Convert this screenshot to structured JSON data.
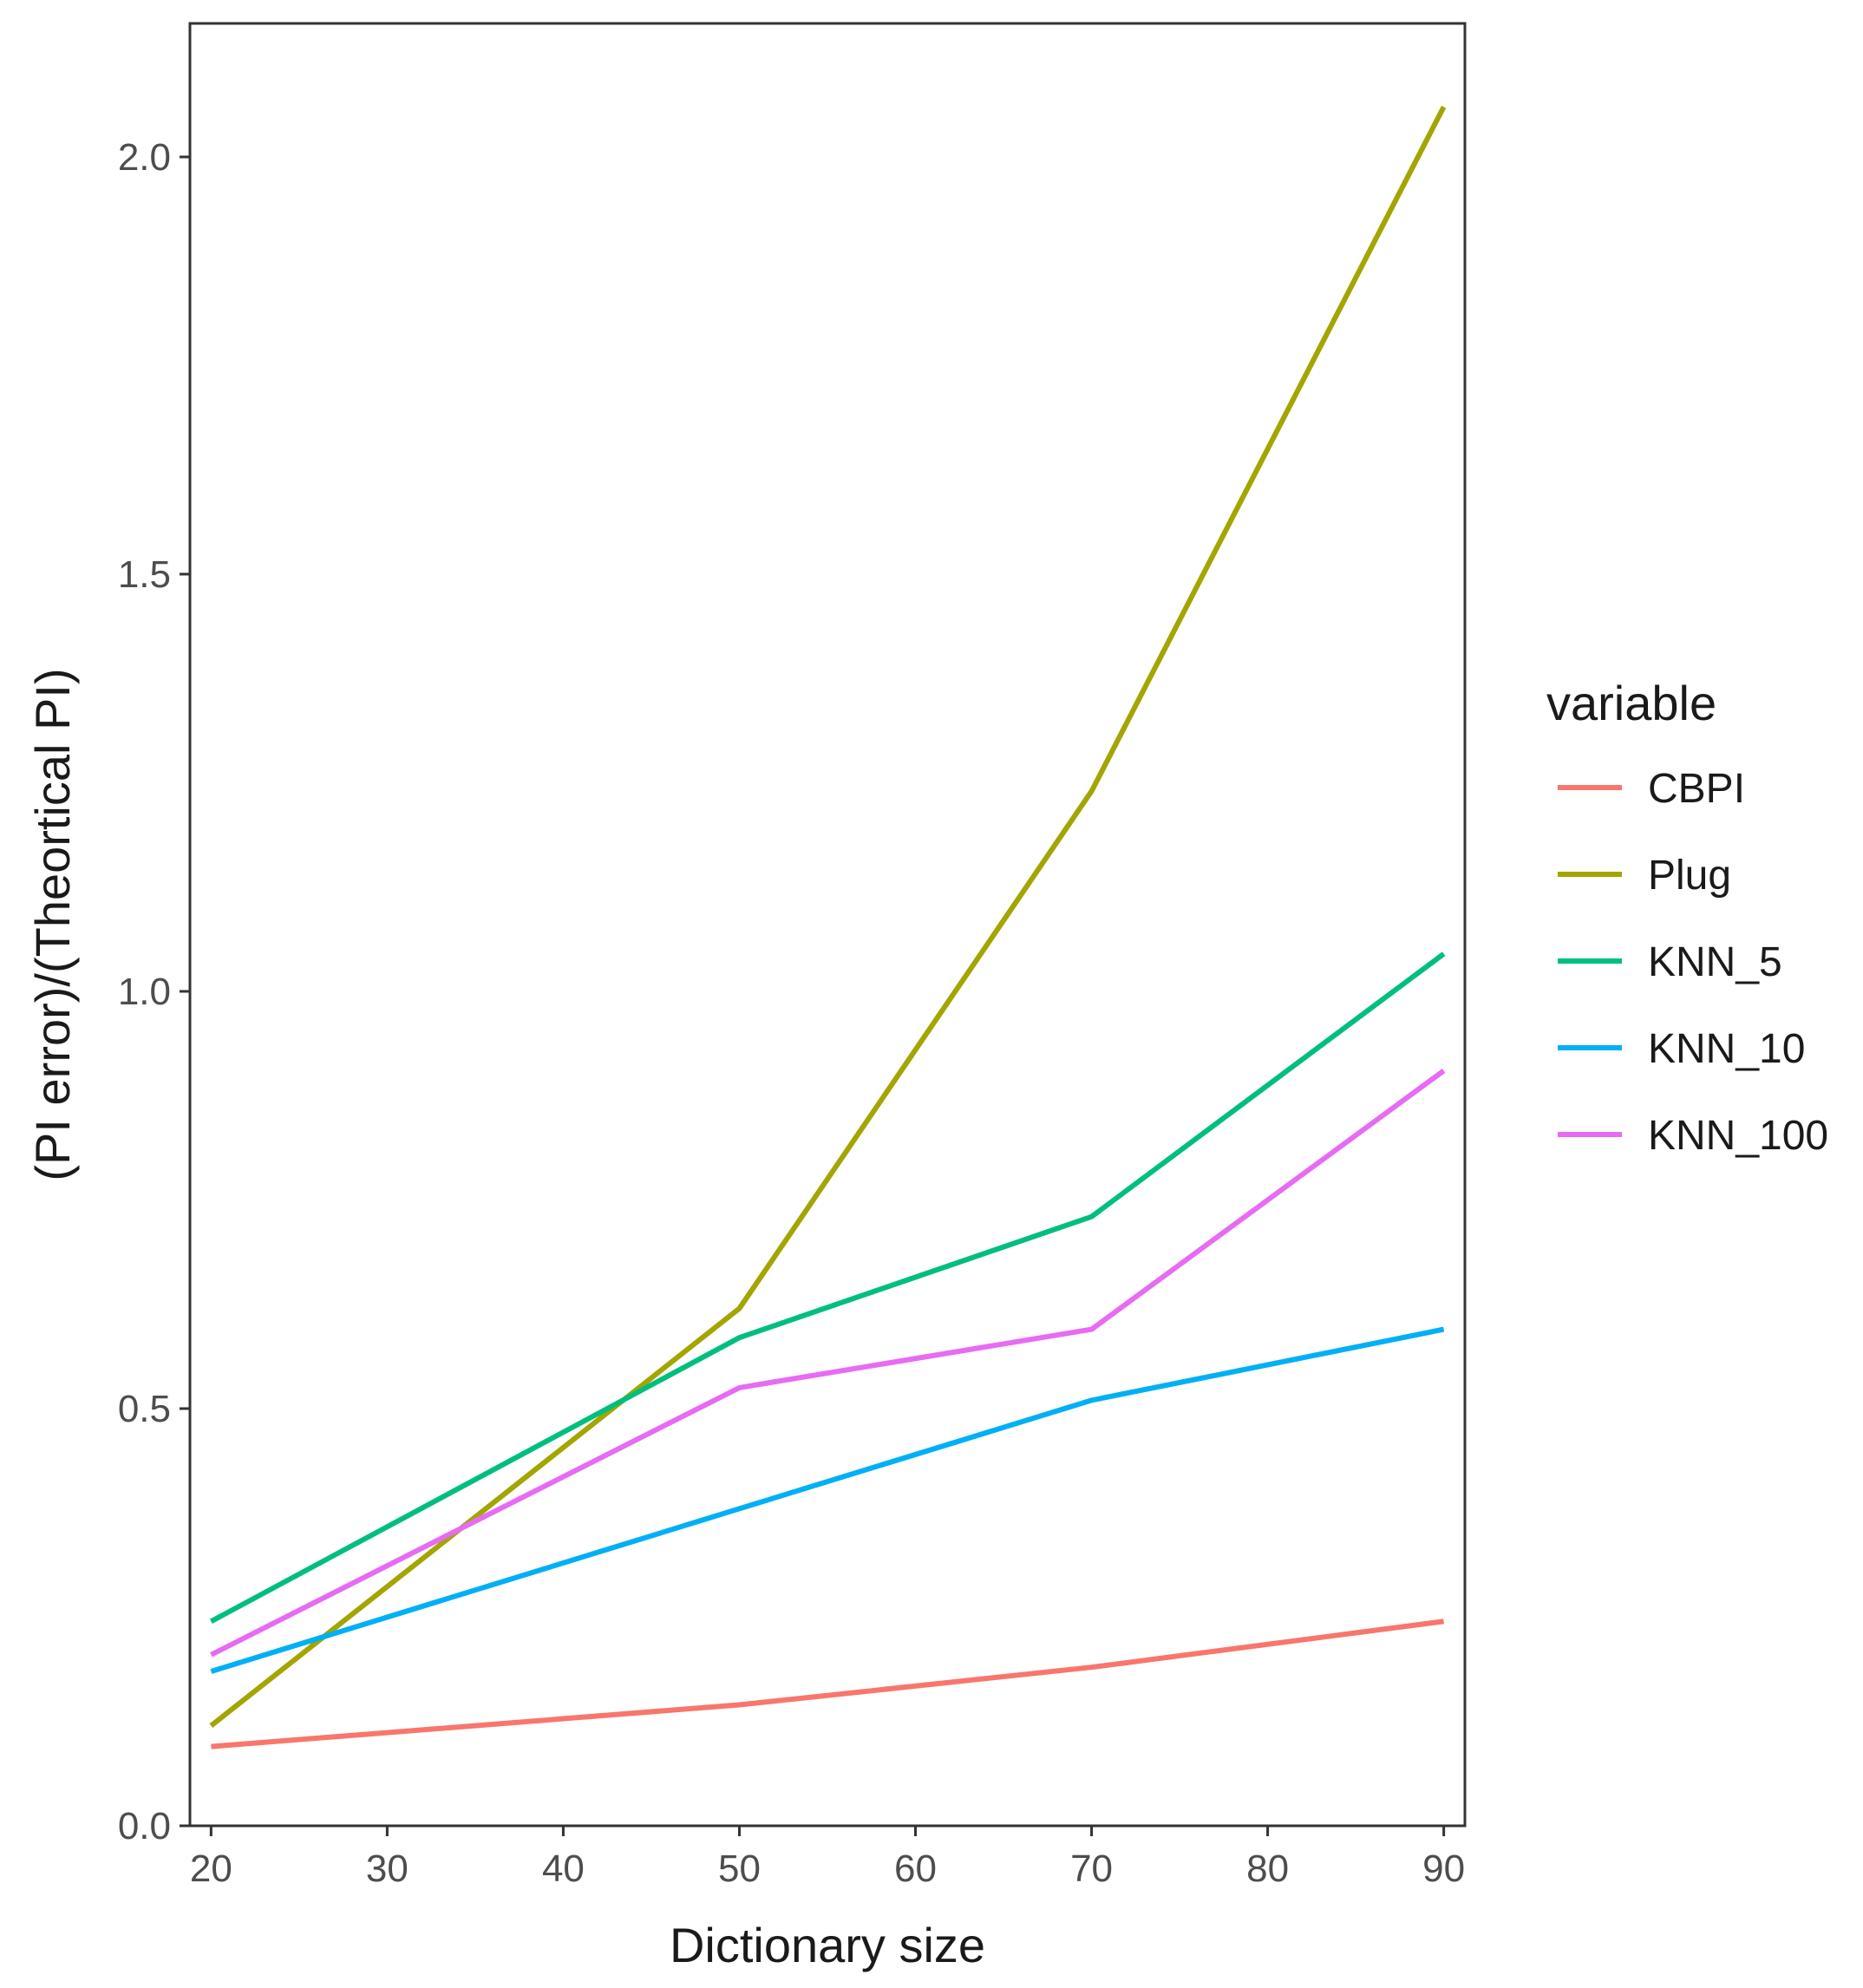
{
  "chart_data": {
    "type": "line",
    "title": "",
    "xlabel": "Dictionary size",
    "ylabel": "(PI error)/(Theortical PI)",
    "x": [
      20,
      50,
      70,
      90
    ],
    "xlim": [
      18.8,
      91.2
    ],
    "ylim": [
      0.0,
      2.16
    ],
    "xticks": [
      20,
      30,
      40,
      50,
      60,
      70,
      80,
      90
    ],
    "xtick_labels": [
      "20",
      "30",
      "40",
      "50",
      "60",
      "70",
      "80",
      "90"
    ],
    "yticks": [
      0.0,
      0.5,
      1.0,
      1.5,
      2.0
    ],
    "ytick_labels": [
      "0.0",
      "0.5",
      "1.0",
      "1.5",
      "2.0"
    ],
    "grid": false,
    "legend": {
      "title": "variable",
      "position": "right"
    },
    "series": [
      {
        "name": "CBPI",
        "color": "#F8766D",
        "values": [
          0.095,
          0.145,
          0.19,
          0.245
        ]
      },
      {
        "name": "Plug",
        "color": "#A3A500",
        "values": [
          0.12,
          0.62,
          1.24,
          2.06
        ]
      },
      {
        "name": "KNN_5",
        "color": "#00BF7D",
        "values": [
          0.245,
          0.585,
          0.73,
          1.045
        ]
      },
      {
        "name": "KNN_10",
        "color": "#00B0F6",
        "values": [
          0.185,
          0.38,
          0.51,
          0.595
        ]
      },
      {
        "name": "KNN_100",
        "color": "#E76BF3",
        "values": [
          0.205,
          0.525,
          0.595,
          0.905
        ]
      }
    ]
  }
}
